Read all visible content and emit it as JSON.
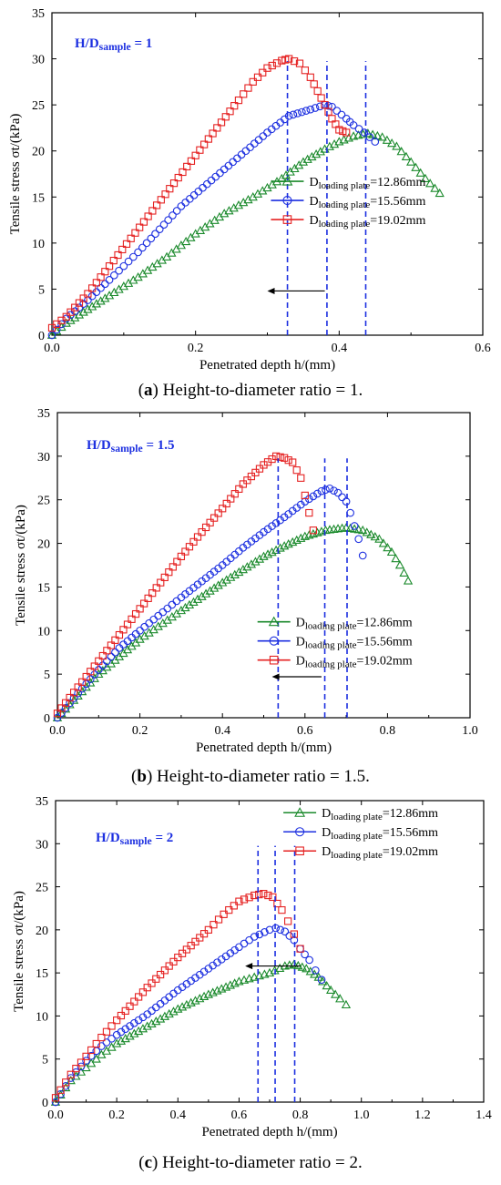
{
  "panels": [
    {
      "caption_letter": "a",
      "caption_text": "Height-to-diameter ratio = 1.",
      "label_main": "H/D",
      "label_sub": "sample",
      "label_value": " = 1",
      "xlabel": "Penetrated depth h/(mm)",
      "ylabel": "Tensile stress σt/(kPa)",
      "xlim": [
        0,
        0.6
      ],
      "ylim": [
        0,
        35
      ],
      "xticks": [
        "0.0",
        "0.2",
        "0.4",
        "0.6"
      ],
      "xtick_values": [
        0,
        0.2,
        0.4,
        0.6
      ],
      "yticks": [
        "0",
        "5",
        "10",
        "15",
        "20",
        "25",
        "30",
        "35"
      ],
      "ytick_values": [
        0,
        5,
        10,
        15,
        20,
        25,
        30,
        35
      ],
      "peak_x": [
        0.328,
        0.383,
        0.437
      ],
      "arrow": {
        "from": 0.38,
        "to": 0.3,
        "y": 4.8
      },
      "legend_position": "center-right",
      "legend_top_y": 16.7,
      "legend_left_x": 0.305,
      "series": [
        {
          "name": "D",
          "sub": "loading plate",
          "value": "=12.86mm",
          "color": "#1b8a2c",
          "marker": "triangle",
          "points": [
            [
              0,
              0
            ],
            [
              0.02,
              1.3
            ],
            [
              0.05,
              2.8
            ],
            [
              0.08,
              4.3
            ],
            [
              0.12,
              6.3
            ],
            [
              0.16,
              8.5
            ],
            [
              0.2,
              11
            ],
            [
              0.24,
              13.2
            ],
            [
              0.28,
              15
            ],
            [
              0.32,
              17
            ],
            [
              0.35,
              18.8
            ],
            [
              0.38,
              20.2
            ],
            [
              0.4,
              21
            ],
            [
              0.42,
              21.6
            ],
            [
              0.44,
              21.9
            ],
            [
              0.46,
              21.5
            ],
            [
              0.48,
              20.5
            ],
            [
              0.5,
              18.8
            ],
            [
              0.52,
              17
            ],
            [
              0.54,
              15.4
            ]
          ]
        },
        {
          "name": "D",
          "sub": "loading plate",
          "value": "=15.56mm",
          "color": "#1c2fe0",
          "marker": "circle",
          "points": [
            [
              0,
              0
            ],
            [
              0.02,
              1.8
            ],
            [
              0.05,
              3.8
            ],
            [
              0.08,
              6
            ],
            [
              0.12,
              9
            ],
            [
              0.15,
              11.5
            ],
            [
              0.18,
              14
            ],
            [
              0.21,
              16
            ],
            [
              0.24,
              18
            ],
            [
              0.27,
              20
            ],
            [
              0.3,
              22
            ],
            [
              0.33,
              23.8
            ],
            [
              0.36,
              24.5
            ],
            [
              0.38,
              25
            ],
            [
              0.39,
              24.8
            ],
            [
              0.41,
              23.5
            ],
            [
              0.42,
              22.8
            ],
            [
              0.435,
              22
            ],
            [
              0.45,
              21
            ]
          ]
        },
        {
          "name": "D",
          "sub": "loading plate",
          "value": "=19.02mm",
          "color": "#e52222",
          "marker": "square",
          "points": [
            [
              0,
              0.8
            ],
            [
              0.02,
              2
            ],
            [
              0.05,
              4.5
            ],
            [
              0.08,
              7.5
            ],
            [
              0.11,
              10.5
            ],
            [
              0.14,
              13.5
            ],
            [
              0.17,
              16.5
            ],
            [
              0.2,
              19.5
            ],
            [
              0.23,
              22.5
            ],
            [
              0.26,
              25.5
            ],
            [
              0.28,
              27.5
            ],
            [
              0.3,
              29
            ],
            [
              0.32,
              29.8
            ],
            [
              0.33,
              30
            ],
            [
              0.345,
              29.5
            ],
            [
              0.36,
              28
            ],
            [
              0.37,
              26.5
            ],
            [
              0.38,
              25
            ],
            [
              0.39,
              23.5
            ],
            [
              0.4,
              22.3
            ],
            [
              0.41,
              22
            ]
          ]
        }
      ]
    },
    {
      "caption_letter": "b",
      "caption_text": "Height-to-diameter ratio = 1.5.",
      "label_main": "H/D",
      "label_sub": "sample",
      "label_value": " = 1.5",
      "xlabel": "Penetrated depth h/(mm)",
      "ylabel": "Tensile stress σt/(kPa)",
      "xlim": [
        0,
        1.0
      ],
      "ylim": [
        0,
        35
      ],
      "xticks": [
        "0.0",
        "0.2",
        "0.4",
        "0.6",
        "0.8",
        "1.0"
      ],
      "xtick_values": [
        0,
        0.2,
        0.4,
        0.6,
        0.8,
        1.0
      ],
      "yticks": [
        "0",
        "5",
        "10",
        "15",
        "20",
        "25",
        "30",
        "35"
      ],
      "ytick_values": [
        0,
        5,
        10,
        15,
        20,
        25,
        30,
        35
      ],
      "peak_x": [
        0.535,
        0.648,
        0.702
      ],
      "arrow": {
        "from": 0.64,
        "to": 0.52,
        "y": 4.7
      },
      "legend_position": "center-right",
      "legend_top_y": 11,
      "legend_left_x": 0.485,
      "series": [
        {
          "name": "D",
          "sub": "loading plate",
          "value": "=12.86mm",
          "color": "#1b8a2c",
          "marker": "triangle",
          "points": [
            [
              0,
              0
            ],
            [
              0.05,
              2.5
            ],
            [
              0.1,
              5
            ],
            [
              0.15,
              7
            ],
            [
              0.2,
              9
            ],
            [
              0.3,
              12.3
            ],
            [
              0.4,
              15.5
            ],
            [
              0.45,
              17
            ],
            [
              0.5,
              18.5
            ],
            [
              0.55,
              19.7
            ],
            [
              0.6,
              20.8
            ],
            [
              0.65,
              21.5
            ],
            [
              0.7,
              21.8
            ],
            [
              0.74,
              21.5
            ],
            [
              0.78,
              20.5
            ],
            [
              0.81,
              19
            ],
            [
              0.83,
              17.5
            ],
            [
              0.85,
              15.7
            ]
          ]
        },
        {
          "name": "D",
          "sub": "loading plate",
          "value": "=15.56mm",
          "color": "#1c2fe0",
          "marker": "circle",
          "points": [
            [
              0,
              0
            ],
            [
              0.05,
              2.8
            ],
            [
              0.1,
              5.5
            ],
            [
              0.15,
              8
            ],
            [
              0.2,
              10
            ],
            [
              0.3,
              13.8
            ],
            [
              0.4,
              17.5
            ],
            [
              0.45,
              19.5
            ],
            [
              0.5,
              21.3
            ],
            [
              0.55,
              23
            ],
            [
              0.6,
              24.8
            ],
            [
              0.64,
              26
            ],
            [
              0.66,
              26.3
            ],
            [
              0.68,
              25.8
            ],
            [
              0.7,
              24.8
            ],
            [
              0.71,
              23.5
            ],
            [
              0.72,
              22
            ],
            [
              0.73,
              20.5
            ],
            [
              0.74,
              18.6
            ]
          ]
        },
        {
          "name": "D",
          "sub": "loading plate",
          "value": "=19.02mm",
          "color": "#e52222",
          "marker": "square",
          "points": [
            [
              0,
              0.5
            ],
            [
              0.05,
              3.5
            ],
            [
              0.1,
              6.5
            ],
            [
              0.15,
              9.5
            ],
            [
              0.2,
              12.5
            ],
            [
              0.25,
              15.5
            ],
            [
              0.3,
              18.5
            ],
            [
              0.35,
              21.3
            ],
            [
              0.4,
              24
            ],
            [
              0.45,
              26.8
            ],
            [
              0.5,
              29
            ],
            [
              0.53,
              30
            ],
            [
              0.55,
              29.8
            ],
            [
              0.57,
              29.3
            ],
            [
              0.59,
              27.5
            ],
            [
              0.6,
              25.5
            ],
            [
              0.61,
              23.5
            ],
            [
              0.62,
              21.5
            ]
          ]
        }
      ]
    },
    {
      "caption_letter": "c",
      "caption_text": "Height-to-diameter ratio = 2.",
      "label_main": "H/D",
      "label_sub": "sample",
      "label_value": " = 2",
      "xlabel": "Penetrated depth h/(mm)",
      "ylabel": "Tensile stress σt/(kPa)",
      "xlim": [
        0,
        1.4
      ],
      "ylim": [
        0,
        35
      ],
      "xticks": [
        "0.0",
        "0.2",
        "0.4",
        "0.6",
        "0.8",
        "1.0",
        "1.2",
        "1.4"
      ],
      "xtick_values": [
        0,
        0.2,
        0.4,
        0.6,
        0.8,
        1.0,
        1.2,
        1.4
      ],
      "yticks": [
        "0",
        "5",
        "10",
        "15",
        "20",
        "25",
        "30",
        "35"
      ],
      "ytick_values": [
        0,
        5,
        10,
        15,
        20,
        25,
        30,
        35
      ],
      "peak_x": [
        0.662,
        0.718,
        0.782
      ],
      "arrow": {
        "from": 0.8,
        "to": 0.62,
        "y": 15.8
      },
      "legend_position": "top-right",
      "legend_top_y": 33.6,
      "legend_left_x": 0.745,
      "series": [
        {
          "name": "D",
          "sub": "loading plate",
          "value": "=12.86mm",
          "color": "#1b8a2c",
          "marker": "triangle",
          "points": [
            [
              0,
              0
            ],
            [
              0.05,
              2.5
            ],
            [
              0.1,
              4
            ],
            [
              0.15,
              5.5
            ],
            [
              0.2,
              6.8
            ],
            [
              0.3,
              8.8
            ],
            [
              0.4,
              10.8
            ],
            [
              0.5,
              12.5
            ],
            [
              0.6,
              14
            ],
            [
              0.65,
              14.5
            ],
            [
              0.7,
              15
            ],
            [
              0.75,
              15.8
            ],
            [
              0.78,
              16
            ],
            [
              0.82,
              15.5
            ],
            [
              0.86,
              14.5
            ],
            [
              0.9,
              13
            ],
            [
              0.93,
              12
            ],
            [
              0.95,
              11.3
            ]
          ]
        },
        {
          "name": "D",
          "sub": "loading plate",
          "value": "=15.56mm",
          "color": "#1c2fe0",
          "marker": "circle",
          "points": [
            [
              0,
              0
            ],
            [
              0.05,
              2.8
            ],
            [
              0.1,
              4.8
            ],
            [
              0.15,
              6.5
            ],
            [
              0.2,
              7.8
            ],
            [
              0.3,
              10.2
            ],
            [
              0.4,
              13
            ],
            [
              0.5,
              15.5
            ],
            [
              0.6,
              18
            ],
            [
              0.65,
              19.2
            ],
            [
              0.7,
              20
            ],
            [
              0.72,
              20.2
            ],
            [
              0.75,
              19.8
            ],
            [
              0.78,
              18.8
            ],
            [
              0.8,
              17.8
            ],
            [
              0.83,
              16.5
            ],
            [
              0.85,
              15.3
            ],
            [
              0.87,
              14.2
            ]
          ]
        },
        {
          "name": "D",
          "sub": "loading plate",
          "value": "=19.02mm",
          "color": "#e52222",
          "marker": "square",
          "points": [
            [
              0,
              0.5
            ],
            [
              0.05,
              3.2
            ],
            [
              0.1,
              5.3
            ],
            [
              0.15,
              7.5
            ],
            [
              0.2,
              9.5
            ],
            [
              0.3,
              13.3
            ],
            [
              0.4,
              16.8
            ],
            [
              0.5,
              20
            ],
            [
              0.55,
              21.8
            ],
            [
              0.6,
              23.3
            ],
            [
              0.65,
              24
            ],
            [
              0.68,
              24.2
            ],
            [
              0.71,
              23.8
            ],
            [
              0.74,
              22.3
            ],
            [
              0.76,
              21
            ],
            [
              0.78,
              19.5
            ],
            [
              0.8,
              17.8
            ]
          ]
        }
      ]
    }
  ]
}
